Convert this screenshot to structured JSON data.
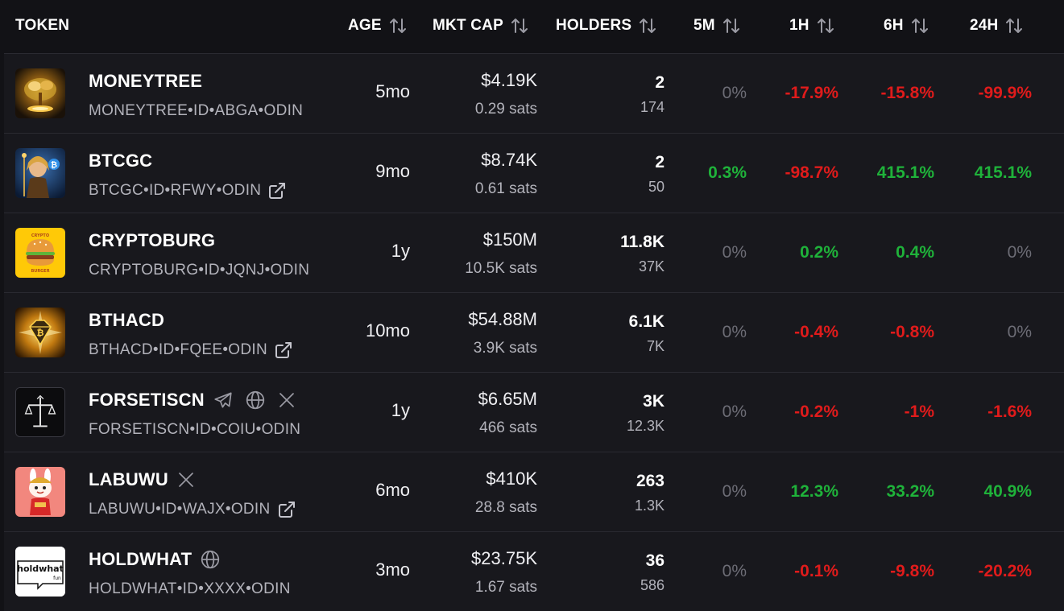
{
  "header": {
    "token": "TOKEN",
    "age": "AGE",
    "mkt_cap": "MKT CAP",
    "holders": "HOLDERS",
    "m5": "5M",
    "h1": "1H",
    "h6": "6H",
    "h24": "24H"
  },
  "colors": {
    "positive": "#1fb23a",
    "negative": "#e01b1b",
    "neutral": "#6d6d76",
    "background": "#121216"
  },
  "rows": [
    {
      "name": "MONEYTREE",
      "id": "MONEYTREE•ID•ABGA•ODIN",
      "age": "5mo",
      "mkt_cap": "$4.19K",
      "sats": "0.29 sats",
      "holders": "2",
      "holders_sub": "174",
      "m5": "0%",
      "h1": "-17.9%",
      "h6": "-15.8%",
      "h24": "-99.9%",
      "icons": [],
      "external_link": false
    },
    {
      "name": "BTCGC",
      "id": "BTCGC•ID•RFWY•ODIN",
      "age": "9mo",
      "mkt_cap": "$8.74K",
      "sats": "0.61 sats",
      "holders": "2",
      "holders_sub": "50",
      "m5": "0.3%",
      "h1": "-98.7%",
      "h6": "415.1%",
      "h24": "415.1%",
      "icons": [],
      "external_link": true
    },
    {
      "name": "CRYPTOBURG",
      "id": "CRYPTOBURG•ID•JQNJ•ODIN",
      "age": "1y",
      "mkt_cap": "$150M",
      "sats": "10.5K sats",
      "holders": "11.8K",
      "holders_sub": "37K",
      "m5": "0%",
      "h1": "0.2%",
      "h6": "0.4%",
      "h24": "0%",
      "icons": [],
      "external_link": false
    },
    {
      "name": "BTHACD",
      "id": "BTHACD•ID•FQEE•ODIN",
      "age": "10mo",
      "mkt_cap": "$54.88M",
      "sats": "3.9K sats",
      "holders": "6.1K",
      "holders_sub": "7K",
      "m5": "0%",
      "h1": "-0.4%",
      "h6": "-0.8%",
      "h24": "0%",
      "icons": [],
      "external_link": true
    },
    {
      "name": "FORSETISCN",
      "id": "FORSETISCN•ID•COIU•ODIN",
      "age": "1y",
      "mkt_cap": "$6.65M",
      "sats": "466 sats",
      "holders": "3K",
      "holders_sub": "12.3K",
      "m5": "0%",
      "h1": "-0.2%",
      "h6": "-1%",
      "h24": "-1.6%",
      "icons": [
        "telegram-icon",
        "globe-icon",
        "x-icon"
      ],
      "external_link": false
    },
    {
      "name": "LABUWU",
      "id": "LABUWU•ID•WAJX•ODIN",
      "age": "6mo",
      "mkt_cap": "$410K",
      "sats": "28.8 sats",
      "holders": "263",
      "holders_sub": "1.3K",
      "m5": "0%",
      "h1": "12.3%",
      "h6": "33.2%",
      "h24": "40.9%",
      "icons": [
        "x-icon"
      ],
      "external_link": true
    },
    {
      "name": "HOLDWHAT",
      "id": "HOLDWHAT•ID•XXXX•ODIN",
      "age": "3mo",
      "mkt_cap": "$23.75K",
      "sats": "1.67 sats",
      "holders": "36",
      "holders_sub": "586",
      "m5": "0%",
      "h1": "-0.1%",
      "h6": "-9.8%",
      "h24": "-20.2%",
      "icons": [
        "globe-icon"
      ],
      "external_link": false,
      "logo_text": "holdwhat",
      "logo_subtext": "fun"
    }
  ]
}
